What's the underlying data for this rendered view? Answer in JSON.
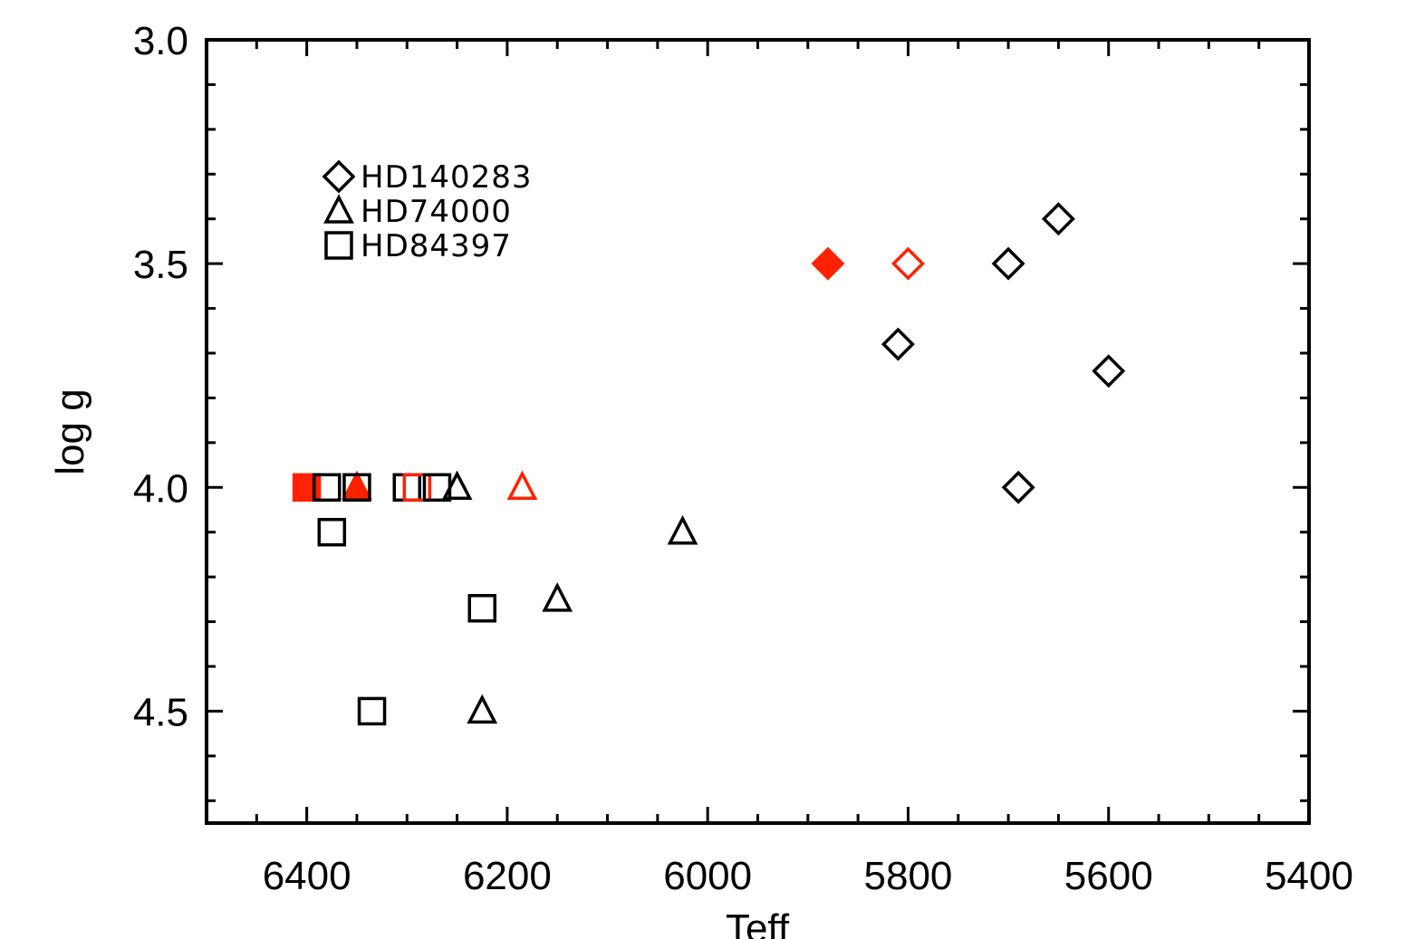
{
  "chart_data": {
    "type": "scatter",
    "xlabel": "Teff",
    "ylabel": "log g",
    "xlim": [
      6500,
      5400
    ],
    "ylim": [
      4.75,
      3.0
    ],
    "x_ticks": [
      6400,
      6200,
      6000,
      5800,
      5600,
      5400
    ],
    "x_tick_labels": [
      "6400",
      "6200",
      "6000",
      "5800",
      "5600",
      "5400"
    ],
    "y_ticks": [
      3.0,
      3.5,
      4.0,
      4.5
    ],
    "y_tick_labels": [
      "3.0",
      "3.5",
      "4.0",
      "4.5"
    ],
    "legend": {
      "placement": "top-left",
      "entries": [
        {
          "label": "HD140283",
          "marker": "diamond"
        },
        {
          "label": "HD74000",
          "marker": "triangle"
        },
        {
          "label": "HD84397",
          "marker": "square"
        }
      ]
    },
    "colors": {
      "black": "#000000",
      "red": "#ff2200"
    },
    "series": [
      {
        "name": "HD140283",
        "marker": "diamond",
        "points": [
          {
            "x": 5650,
            "y": 3.4,
            "color": "black",
            "filled": false
          },
          {
            "x": 5700,
            "y": 3.5,
            "color": "black",
            "filled": false
          },
          {
            "x": 5880,
            "y": 3.5,
            "color": "red",
            "filled": true
          },
          {
            "x": 5800,
            "y": 3.5,
            "color": "red",
            "filled": false
          },
          {
            "x": 5810,
            "y": 3.68,
            "color": "black",
            "filled": false
          },
          {
            "x": 5600,
            "y": 3.74,
            "color": "black",
            "filled": false
          },
          {
            "x": 5690,
            "y": 4.0,
            "color": "black",
            "filled": false
          }
        ]
      },
      {
        "name": "HD74000",
        "marker": "triangle",
        "points": [
          {
            "x": 6350,
            "y": 4.0,
            "color": "red",
            "filled": true
          },
          {
            "x": 6250,
            "y": 4.0,
            "color": "black",
            "filled": false
          },
          {
            "x": 6185,
            "y": 4.0,
            "color": "red",
            "filled": false
          },
          {
            "x": 6025,
            "y": 4.1,
            "color": "black",
            "filled": false
          },
          {
            "x": 6150,
            "y": 4.25,
            "color": "black",
            "filled": false
          },
          {
            "x": 6225,
            "y": 4.5,
            "color": "black",
            "filled": false
          }
        ]
      },
      {
        "name": "HD84397",
        "marker": "square",
        "points": [
          {
            "x": 6400,
            "y": 4.0,
            "color": "red",
            "filled": true
          },
          {
            "x": 6380,
            "y": 4.0,
            "color": "black",
            "filled": false
          },
          {
            "x": 6350,
            "y": 4.0,
            "color": "black",
            "filled": false
          },
          {
            "x": 6300,
            "y": 4.0,
            "color": "black",
            "filled": false
          },
          {
            "x": 6290,
            "y": 4.0,
            "color": "red",
            "filled": false
          },
          {
            "x": 6270,
            "y": 4.0,
            "color": "black",
            "filled": false
          },
          {
            "x": 6375,
            "y": 4.1,
            "color": "black",
            "filled": false
          },
          {
            "x": 6225,
            "y": 4.27,
            "color": "black",
            "filled": false
          },
          {
            "x": 6335,
            "y": 4.5,
            "color": "black",
            "filled": false
          }
        ]
      }
    ]
  }
}
